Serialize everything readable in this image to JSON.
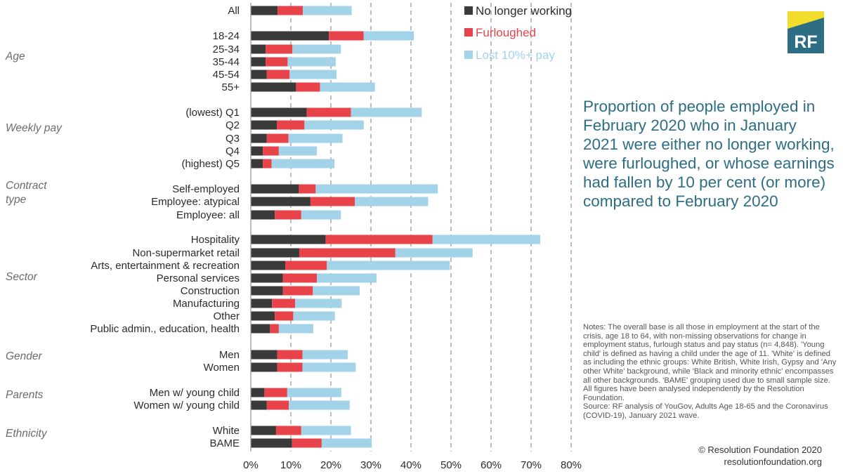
{
  "chart_data": {
    "type": "bar",
    "orientation": "horizontal",
    "stacked": true,
    "title": "Proportion of people employed in February 2020 who in January 2021 were either no longer working, were furloughed, or whose earnings had fallen by 10 per cent (or more) compared to February 2020",
    "xlim": [
      0,
      80
    ],
    "xticks": [
      "0%",
      "10%",
      "20%",
      "30%",
      "40%",
      "50%",
      "60%",
      "70%",
      "80%"
    ],
    "legend_position": "top-right",
    "series_names": [
      "No longer working",
      "Furloughed",
      "Lost 10%+ pay"
    ],
    "series_colors": [
      "#3a3a3a",
      "#e8434a",
      "#a3d3e8"
    ],
    "groups": [
      {
        "label": "",
        "categories": [
          {
            "label": "All",
            "values": [
              6.7,
              6.3,
              12.2
            ]
          }
        ]
      },
      {
        "label": "Age",
        "categories": [
          {
            "label": "18-24",
            "values": [
              19.5,
              8.7,
              12.5
            ]
          },
          {
            "label": "25-34",
            "values": [
              3.7,
              6.7,
              12.1
            ]
          },
          {
            "label": "35-44",
            "values": [
              3.7,
              5.5,
              12.0
            ]
          },
          {
            "label": "45-54",
            "values": [
              4.0,
              5.7,
              11.7
            ]
          },
          {
            "label": "55+",
            "values": [
              11.3,
              6.0,
              13.7
            ]
          }
        ]
      },
      {
        "label": "Weekly pay",
        "categories": [
          {
            "label": "(lowest) Q1",
            "values": [
              14.0,
              11.0,
              17.7
            ]
          },
          {
            "label": "Q2",
            "values": [
              6.5,
              6.9,
              14.8
            ]
          },
          {
            "label": "Q3",
            "values": [
              4.0,
              5.4,
              13.5
            ]
          },
          {
            "label": "Q4",
            "values": [
              3.0,
              4.0,
              9.5
            ]
          },
          {
            "label": "(highest) Q5",
            "values": [
              3.0,
              2.2,
              15.7
            ]
          }
        ]
      },
      {
        "label": "Contract\ntype",
        "categories": [
          {
            "label": "Self-employed",
            "values": [
              12.0,
              4.2,
              30.5
            ]
          },
          {
            "label": "Employee: atypical",
            "values": [
              14.9,
              11.1,
              18.3
            ]
          },
          {
            "label": "Employee: all",
            "values": [
              6.0,
              6.6,
              9.9
            ]
          }
        ]
      },
      {
        "label": "Sector",
        "categories": [
          {
            "label": "Hospitality",
            "values": [
              18.7,
              26.7,
              26.9
            ]
          },
          {
            "label": "Non-supermarket retail",
            "values": [
              12.1,
              24.0,
              19.3
            ]
          },
          {
            "label": "Arts, entertainment & recreation",
            "values": [
              8.6,
              10.4,
              30.7
            ]
          },
          {
            "label": "Personal services",
            "values": [
              8.0,
              8.5,
              14.9
            ]
          },
          {
            "label": "Construction",
            "values": [
              8.0,
              7.5,
              11.7
            ]
          },
          {
            "label": "Manufacturing",
            "values": [
              5.3,
              5.8,
              11.6
            ]
          },
          {
            "label": "Other",
            "values": [
              6.0,
              4.6,
              10.4
            ]
          },
          {
            "label": "Public admin., education, health",
            "values": [
              4.8,
              2.2,
              8.6
            ]
          }
        ]
      },
      {
        "label": "Gender",
        "categories": [
          {
            "label": "Men",
            "values": [
              6.6,
              6.3,
              11.3
            ]
          },
          {
            "label": "Women",
            "values": [
              6.6,
              6.3,
              13.3
            ]
          }
        ]
      },
      {
        "label": "Parents",
        "categories": [
          {
            "label": "Men w/ young child",
            "values": [
              3.4,
              5.7,
              13.5
            ]
          },
          {
            "label": "Women w/ young child",
            "values": [
              4.0,
              5.5,
              15.2
            ]
          }
        ]
      },
      {
        "label": "Ethnicity",
        "categories": [
          {
            "label": "White",
            "values": [
              6.3,
              6.3,
              12.4
            ]
          },
          {
            "label": "BAME",
            "values": [
              10.3,
              7.4,
              12.5
            ]
          }
        ]
      }
    ]
  },
  "title_text": "Proportion of people employed in February 2020 who in January 2021 were either no longer working, were furloughed, or whose earnings had fallen by 10 per cent (or more) compared to February 2020",
  "notes": {
    "text": "Notes: The overall base is all those in employment at the start of the crisis, age 18 to 64, with non-missing observations for change in employment status, furlough status and pay status (n= 4,848). 'Young child' is defined as having a child under the age of 11. 'White' is defined as including the ethnic groups: White British, White Irish, Gypsy and 'Any other White' background, while 'Black and minority ethnic' encompasses all other backgrounds. 'BAME' grouping used due to small sample size. All figures have been analysed independently by the Resolution Foundation.",
    "source": "Source: RF analysis of YouGov, Adults Age 18-65 and the Coronavirus (COVID-19), January 2021 wave."
  },
  "credit": {
    "line1": "© Resolution Foundation 2020",
    "line2": "resolutionfoundation.org"
  },
  "logo": {
    "text": "RF",
    "accent_color": "#f2dd2e",
    "box_color": "#2d6e84"
  }
}
